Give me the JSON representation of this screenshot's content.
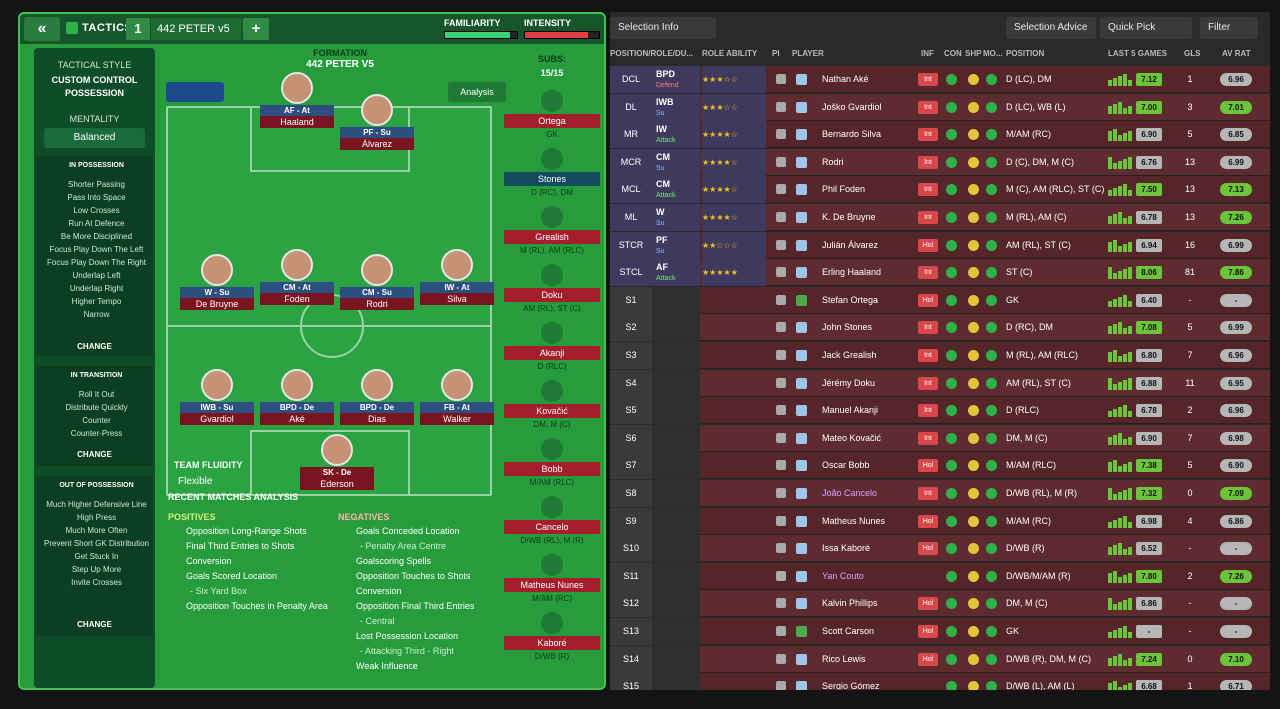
{
  "topbar": {
    "back_label": "«",
    "tactics_label": "TACTICS",
    "tactic_num": "1",
    "tactic_name": "442 PETER v5",
    "add_label": "+",
    "familiarity_label": "FAMILIARITY",
    "intensity_label": "INTENSITY",
    "familiarity_level": 0.9,
    "intensity_level": 0.85
  },
  "colors": {
    "accent_green": "#279c3c",
    "dark_green": "#0f4c2a",
    "red": "#a41e2c",
    "role_purple": "#3f3b5e"
  },
  "sidebar": {
    "style_label": "TACTICAL STYLE",
    "style_name": "CUSTOM CONTROL POSSESSION",
    "mentality_label": "MENTALITY",
    "mentality_value": "Balanced",
    "in_possession": {
      "title": "IN POSSESSION",
      "items": [
        "Shorter Passing",
        "Pass Into Space",
        "Low Crosses",
        "Run At Defence",
        "Be More Disciplined",
        "Focus Play Down The Left",
        "Focus Play Down The Right",
        "Underlap Left",
        "Underlap Right",
        "Higher Tempo",
        "Narrow"
      ],
      "change": "CHANGE"
    },
    "in_transition": {
      "title": "IN TRANSITION",
      "items": [
        "Roll It Out",
        "Distribute Quickly",
        "Counter",
        "Counter-Press"
      ],
      "change": "CHANGE"
    },
    "out_of_possession": {
      "title": "OUT OF POSSESSION",
      "items": [
        "Much Higher Defensive Line",
        "High Press",
        "Much More Often",
        "Prevent Short GK Distribution",
        "Get Stuck In",
        "Step Up More",
        "Invite Crosses"
      ],
      "change": "CHANGE"
    }
  },
  "formation": {
    "label": "FORMATION",
    "name": "442 PETER V5",
    "analysis": "Analysis",
    "team_fluidity_label": "TEAM FLUIDITY",
    "team_fluidity_value": "Flexible"
  },
  "pitch_players": [
    {
      "role": "AF - At",
      "name": "Haaland"
    },
    {
      "role": "PF - Su",
      "name": "Álvarez"
    },
    {
      "role": "W - Su",
      "name": "De Bruyne"
    },
    {
      "role": "CM - At",
      "name": "Foden"
    },
    {
      "role": "CM - Su",
      "name": "Rodri"
    },
    {
      "role": "IW - At",
      "name": "Silva"
    },
    {
      "role": "IWB - Su",
      "name": "Gvardiol"
    },
    {
      "role": "BPD - De",
      "name": "Aké"
    },
    {
      "role": "BPD - De",
      "name": "Dias"
    },
    {
      "role": "FB - At",
      "name": "Walker"
    },
    {
      "role": "SK - De",
      "name": "Ederson"
    }
  ],
  "subs": {
    "label": "SUBS:",
    "count": "15/15",
    "players": [
      {
        "name": "Ortega",
        "pos": "GK"
      },
      {
        "name": "Stones",
        "pos": "D (RC), DM"
      },
      {
        "name": "Grealish",
        "pos": "M (RL), AM (RLC)"
      },
      {
        "name": "Doku",
        "pos": "AM (RL), ST (C)"
      },
      {
        "name": "Akanji",
        "pos": "D (RLC)"
      },
      {
        "name": "Kovačić",
        "pos": "DM, M (C)"
      },
      {
        "name": "Bobb",
        "pos": "M/AM (RLC)"
      },
      {
        "name": "Cancelo",
        "pos": "D/WB (RL), M (R)"
      },
      {
        "name": "Matheus Nunes",
        "pos": "M/AM (RC)"
      },
      {
        "name": "Kaboré",
        "pos": "D/WB (R)"
      }
    ]
  },
  "recent": {
    "title": "RECENT MATCHES ANALYSIS",
    "positives_label": "POSITIVES",
    "negatives_label": "NEGATIVES",
    "positives": [
      "Opposition Long-Range Shots",
      "Final Third Entries to Shots Conversion",
      "Goals Scored Location",
      "- Six Yard Box",
      "Opposition Touches in Penalty Area"
    ],
    "negatives": [
      "Goals Conceded Location",
      "- Penalty Area Centre",
      "Goalscoring Spells",
      "Opposition Touches to Shots Conversion",
      "Opposition Final Third Entries",
      "- Central",
      "Lost Possession Location",
      "- Attacking Third - Right",
      "Weak Influence"
    ]
  },
  "right": {
    "selection_info": "Selection Info",
    "selection_advice": "Selection Advice",
    "quick_pick": "Quick Pick",
    "filter": "Filter",
    "headers": {
      "pos": "POSITION/ROLE/DU...",
      "ability": "ROLE ABILITY",
      "pi": "PI",
      "player": "PLAYER",
      "inf": "INF",
      "con": "CON",
      "shp": "SHP",
      "mo": "MO...",
      "position": "POSITION",
      "last5": "LAST 5 GAMES",
      "gls": "GLS",
      "avrat": "AV RAT"
    },
    "rows": [
      {
        "slot": "DCL",
        "role": "BPD",
        "duty": "Defend",
        "stars": "★★★☆☆",
        "player": "Nathan Aké",
        "inf": "Int",
        "position": "D (LC), DM",
        "form": "7.12",
        "gls": "1",
        "rat": "6.96"
      },
      {
        "slot": "DL",
        "role": "IWB",
        "duty": "Su",
        "stars": "★★★☆☆",
        "player": "Joško Gvardiol",
        "inf": "Int",
        "position": "D (LC), WB (L)",
        "form": "7.00",
        "gls": "3",
        "rat": "7.01"
      },
      {
        "slot": "MR",
        "role": "IW",
        "duty": "Attack",
        "stars": "★★★★☆",
        "player": "Bernardo Silva",
        "inf": "Int",
        "position": "M/AM (RC)",
        "form": "6.90",
        "gls": "5",
        "rat": "6.85"
      },
      {
        "slot": "MCR",
        "role": "CM",
        "duty": "Su",
        "stars": "★★★★☆",
        "player": "Rodri",
        "inf": "Int",
        "position": "D (C), DM, M (C)",
        "form": "6.76",
        "gls": "13",
        "rat": "6.99"
      },
      {
        "slot": "MCL",
        "role": "CM",
        "duty": "Attack",
        "stars": "★★★★☆",
        "player": "Phil Foden",
        "inf": "Int",
        "position": "M (C), AM (RLC), ST (C)",
        "form": "7.50",
        "gls": "13",
        "rat": "7.13"
      },
      {
        "slot": "ML",
        "role": "W",
        "duty": "Su",
        "stars": "★★★★☆",
        "player": "K. De Bruyne",
        "inf": "Int",
        "position": "M (RL), AM (C)",
        "form": "6.78",
        "gls": "13",
        "rat": "7.26"
      },
      {
        "slot": "STCR",
        "role": "PF",
        "duty": "Su",
        "stars": "★★☆☆☆",
        "player": "Julián Álvarez",
        "inf": "Hol",
        "position": "AM (RL), ST (C)",
        "form": "6.94",
        "gls": "16",
        "rat": "6.99"
      },
      {
        "slot": "STCL",
        "role": "AF",
        "duty": "Attack",
        "stars": "★★★★★",
        "player": "Erling Haaland",
        "inf": "Int",
        "position": "ST (C)",
        "form": "8.06",
        "gls": "81",
        "rat": "7.86"
      },
      {
        "slot": "S1",
        "role": "",
        "duty": "",
        "stars": "",
        "player": "Stefan Ortega",
        "inf": "Hol",
        "position": "GK",
        "form": "6.40",
        "gls": "-",
        "rat": "-"
      },
      {
        "slot": "S2",
        "role": "",
        "duty": "",
        "stars": "",
        "player": "John Stones",
        "inf": "Int",
        "position": "D (RC), DM",
        "form": "7.08",
        "gls": "5",
        "rat": "6.99"
      },
      {
        "slot": "S3",
        "role": "",
        "duty": "",
        "stars": "",
        "player": "Jack Grealish",
        "inf": "Int",
        "position": "M (RL), AM (RLC)",
        "form": "6.80",
        "gls": "7",
        "rat": "6.96"
      },
      {
        "slot": "S4",
        "role": "",
        "duty": "",
        "stars": "",
        "player": "Jérémy Doku",
        "inf": "Int",
        "position": "AM (RL), ST (C)",
        "form": "6.88",
        "gls": "11",
        "rat": "6.95"
      },
      {
        "slot": "S5",
        "role": "",
        "duty": "",
        "stars": "",
        "player": "Manuel Akanji",
        "inf": "Int",
        "position": "D (RLC)",
        "form": "6.78",
        "gls": "2",
        "rat": "6.96"
      },
      {
        "slot": "S6",
        "role": "",
        "duty": "",
        "stars": "",
        "player": "Mateo Kovačić",
        "inf": "Int",
        "position": "DM, M (C)",
        "form": "6.90",
        "gls": "7",
        "rat": "6.98"
      },
      {
        "slot": "S7",
        "role": "",
        "duty": "",
        "stars": "",
        "player": "Oscar Bobb",
        "inf": "Hol",
        "position": "M/AM (RLC)",
        "form": "7.38",
        "gls": "5",
        "rat": "6.90"
      },
      {
        "slot": "S8",
        "role": "",
        "duty": "",
        "stars": "",
        "player": "João Cancelo",
        "inf": "Int",
        "position": "D/WB (RL), M (R)",
        "form": "7.32",
        "gls": "0",
        "rat": "7.09"
      },
      {
        "slot": "S9",
        "role": "",
        "duty": "",
        "stars": "",
        "player": "Matheus Nunes",
        "inf": "Hol",
        "position": "M/AM (RC)",
        "form": "6.98",
        "gls": "4",
        "rat": "6.86"
      },
      {
        "slot": "S10",
        "role": "",
        "duty": "",
        "stars": "",
        "player": "Issa Kaboré",
        "inf": "Hol",
        "position": "D/WB (R)",
        "form": "6.52",
        "gls": "-",
        "rat": "-"
      },
      {
        "slot": "S11",
        "role": "",
        "duty": "",
        "stars": "",
        "player": "Yan Couto",
        "inf": "",
        "position": "D/WB/M/AM (R)",
        "form": "7.80",
        "gls": "2",
        "rat": "7.26"
      },
      {
        "slot": "S12",
        "role": "",
        "duty": "",
        "stars": "",
        "player": "Kalvin Phillips",
        "inf": "Hol",
        "position": "DM, M (C)",
        "form": "6.86",
        "gls": "-",
        "rat": "-"
      },
      {
        "slot": "S13",
        "role": "",
        "duty": "",
        "stars": "",
        "player": "Scott Carson",
        "inf": "Hol",
        "position": "GK",
        "form": "-",
        "gls": "-",
        "rat": "-"
      },
      {
        "slot": "S14",
        "role": "",
        "duty": "",
        "stars": "",
        "player": "Rico Lewis",
        "inf": "Hol",
        "position": "D/WB (R), DM, M (C)",
        "form": "7.24",
        "gls": "0",
        "rat": "7.10"
      },
      {
        "slot": "S15",
        "role": "",
        "duty": "",
        "stars": "",
        "player": "Sergio Gómez",
        "inf": "",
        "position": "D/WB (L), AM (L)",
        "form": "6.68",
        "gls": "1",
        "rat": "6.71"
      }
    ]
  }
}
